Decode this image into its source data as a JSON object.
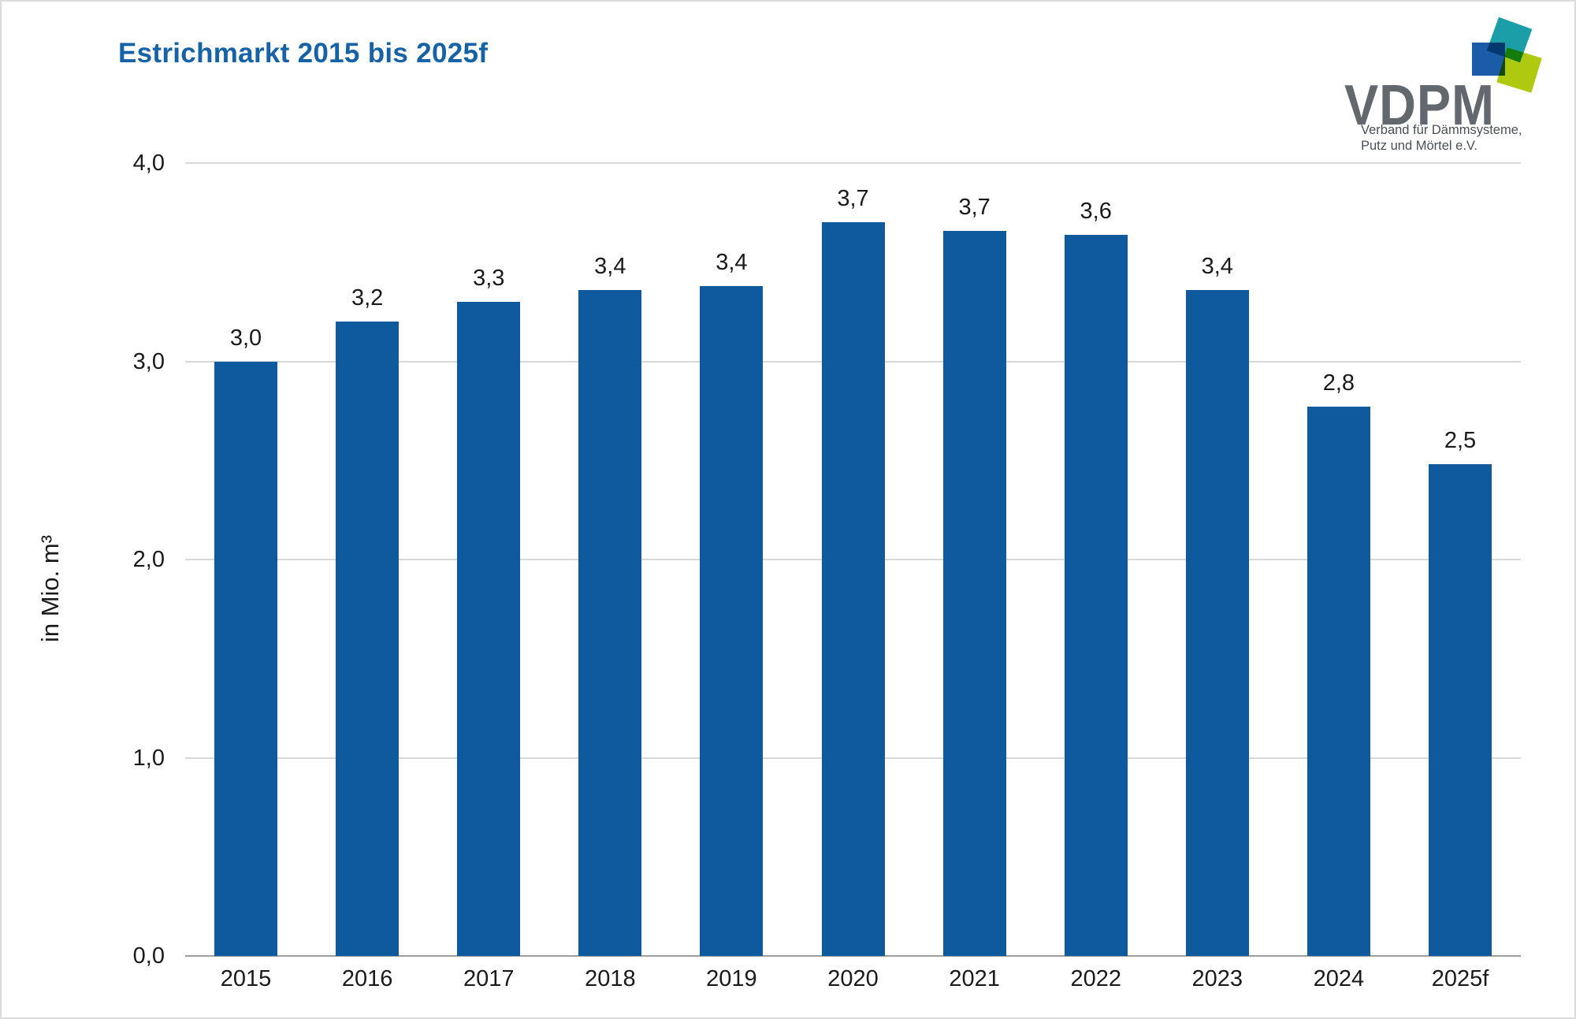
{
  "title": "Estrichmarkt 2015 bis 2025f",
  "logo": {
    "wordmark": "VDPM",
    "tagline_line1": "Verband für Dämmsysteme,",
    "tagline_line2": "Putz und Mörtel e.V.",
    "colors": {
      "blue": "#1a5ca8",
      "teal": "#1c9ea9",
      "green": "#aec90f",
      "wordmark_gray": "#62686d"
    }
  },
  "chart_data": {
    "type": "bar",
    "title": "Estrichmarkt 2015 bis 2025f",
    "ylabel": "in Mio. m³",
    "xlabel": "",
    "categories": [
      "2015",
      "2016",
      "2017",
      "2018",
      "2019",
      "2020",
      "2021",
      "2022",
      "2023",
      "2024",
      "2025f"
    ],
    "values": [
      3.0,
      3.2,
      3.3,
      3.36,
      3.38,
      3.7,
      3.66,
      3.64,
      3.36,
      2.77,
      2.48
    ],
    "bar_labels": [
      "3,0",
      "3,2",
      "3,3",
      "3,4",
      "3,4",
      "3,7",
      "3,7",
      "3,6",
      "3,4",
      "2,8",
      "2,5"
    ],
    "ylim": [
      0,
      4
    ],
    "yticks": {
      "values": [
        0,
        1,
        2,
        3,
        4
      ],
      "labels": [
        "0,0",
        "1,0",
        "2,0",
        "3,0",
        "4,0"
      ]
    },
    "grid": true,
    "legend_position": "none",
    "bar_color": "#0f5a9e",
    "title_color": "#1662a7",
    "gridline_color": "#d9d9d9",
    "axis_color": "#9e9e9e",
    "label_color": "#1a1a1a"
  }
}
